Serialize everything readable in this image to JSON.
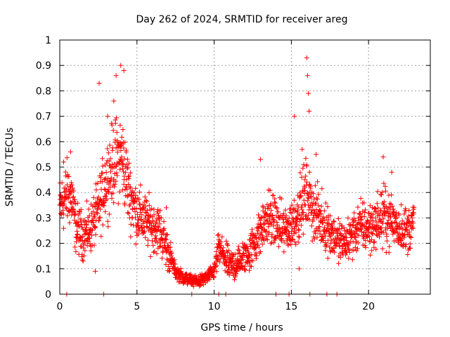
{
  "chart_data": {
    "type": "scatter",
    "title": "Day 262 of 2024, SRMTID for receiver areg",
    "xlabel": "GPS time / hours",
    "ylabel": "SRMTID / TECUs",
    "xlim": [
      0,
      24
    ],
    "ylim": [
      0,
      1
    ],
    "x_ticks": [
      "0",
      "5",
      "10",
      "15",
      "20"
    ],
    "y_ticks": [
      "0",
      "0.1",
      "0.2",
      "0.3",
      "0.4",
      "0.5",
      "0.6",
      "0.7",
      "0.8",
      "0.9",
      "1"
    ],
    "grid": true,
    "marker": "plus",
    "color": "#ff0000",
    "trend": [
      {
        "x": 0.0,
        "y": 0.34
      },
      {
        "x": 0.5,
        "y": 0.4
      },
      {
        "x": 0.8,
        "y": 0.38
      },
      {
        "x": 1.0,
        "y": 0.27
      },
      {
        "x": 1.5,
        "y": 0.23
      },
      {
        "x": 2.0,
        "y": 0.26
      },
      {
        "x": 2.5,
        "y": 0.33
      },
      {
        "x": 3.0,
        "y": 0.45
      },
      {
        "x": 3.5,
        "y": 0.52
      },
      {
        "x": 4.0,
        "y": 0.55
      },
      {
        "x": 4.5,
        "y": 0.4
      },
      {
        "x": 5.0,
        "y": 0.32
      },
      {
        "x": 5.5,
        "y": 0.29
      },
      {
        "x": 6.0,
        "y": 0.27
      },
      {
        "x": 6.5,
        "y": 0.25
      },
      {
        "x": 7.0,
        "y": 0.17
      },
      {
        "x": 7.5,
        "y": 0.09
      },
      {
        "x": 8.0,
        "y": 0.065
      },
      {
        "x": 8.5,
        "y": 0.055
      },
      {
        "x": 9.0,
        "y": 0.05
      },
      {
        "x": 9.5,
        "y": 0.065
      },
      {
        "x": 10.0,
        "y": 0.09
      },
      {
        "x": 10.3,
        "y": 0.18
      },
      {
        "x": 10.6,
        "y": 0.15
      },
      {
        "x": 11.0,
        "y": 0.11
      },
      {
        "x": 11.5,
        "y": 0.12
      },
      {
        "x": 12.0,
        "y": 0.15
      },
      {
        "x": 12.5,
        "y": 0.19
      },
      {
        "x": 13.0,
        "y": 0.25
      },
      {
        "x": 13.5,
        "y": 0.3
      },
      {
        "x": 14.0,
        "y": 0.28
      },
      {
        "x": 14.5,
        "y": 0.25
      },
      {
        "x": 15.0,
        "y": 0.27
      },
      {
        "x": 15.5,
        "y": 0.33
      },
      {
        "x": 16.0,
        "y": 0.4
      },
      {
        "x": 16.5,
        "y": 0.32
      },
      {
        "x": 17.0,
        "y": 0.28
      },
      {
        "x": 17.5,
        "y": 0.25
      },
      {
        "x": 18.0,
        "y": 0.21
      },
      {
        "x": 18.5,
        "y": 0.2
      },
      {
        "x": 19.0,
        "y": 0.24
      },
      {
        "x": 19.5,
        "y": 0.27
      },
      {
        "x": 20.0,
        "y": 0.26
      },
      {
        "x": 20.5,
        "y": 0.28
      },
      {
        "x": 21.0,
        "y": 0.31
      },
      {
        "x": 21.5,
        "y": 0.29
      },
      {
        "x": 22.0,
        "y": 0.26
      },
      {
        "x": 22.5,
        "y": 0.25
      },
      {
        "x": 22.9,
        "y": 0.28
      }
    ],
    "spikes": [
      {
        "x": 0.25,
        "y": 0.52
      },
      {
        "x": 0.7,
        "y": 0.56
      },
      {
        "x": 2.55,
        "y": 0.83
      },
      {
        "x": 3.1,
        "y": 0.7
      },
      {
        "x": 3.5,
        "y": 0.76
      },
      {
        "x": 3.65,
        "y": 0.86
      },
      {
        "x": 3.95,
        "y": 0.9
      },
      {
        "x": 4.15,
        "y": 0.88
      },
      {
        "x": 6.9,
        "y": 0.34
      },
      {
        "x": 13.0,
        "y": 0.53
      },
      {
        "x": 15.2,
        "y": 0.7
      },
      {
        "x": 15.7,
        "y": 0.57
      },
      {
        "x": 16.0,
        "y": 0.93
      },
      {
        "x": 16.05,
        "y": 0.86
      },
      {
        "x": 16.1,
        "y": 0.79
      },
      {
        "x": 16.15,
        "y": 0.72
      },
      {
        "x": 16.6,
        "y": 0.55
      },
      {
        "x": 20.95,
        "y": 0.54
      },
      {
        "x": 21.5,
        "y": 0.48
      },
      {
        "x": 15.5,
        "y": 0.1
      },
      {
        "x": 2.3,
        "y": 0.09
      }
    ],
    "zero_points": [
      0.45,
      2.85,
      8.55,
      10.3,
      10.75,
      14.0,
      14.85,
      16.2,
      17.3,
      17.95
    ]
  }
}
